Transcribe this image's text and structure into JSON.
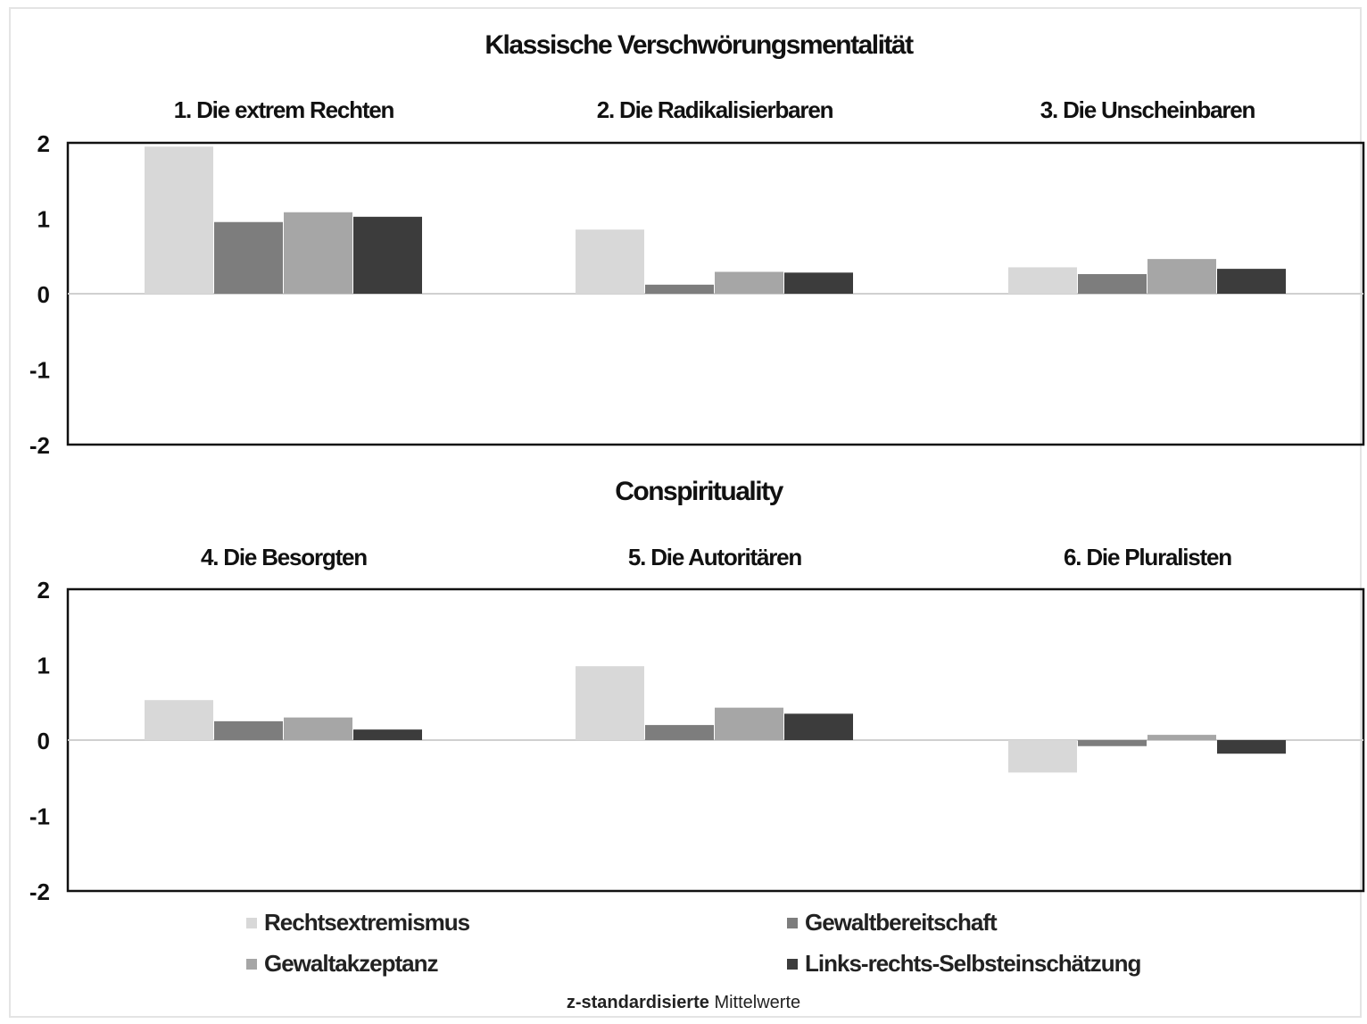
{
  "chart_data": {
    "type": "bar",
    "title": "",
    "caption_bold": "z-standardisierte",
    "caption_normal": "Mittelwerte",
    "ylim": [
      -2,
      2
    ],
    "yticks": [
      "2",
      "1",
      "0",
      "-1",
      "-2"
    ],
    "series_names": [
      "Rechtsextremismus",
      "Gewaltbereitschaft",
      "Gewaltakzeptanz",
      "Links-rechts-Selbsteinschätzung"
    ],
    "colors": [
      "#d8d8d8",
      "#7d7d7d",
      "#a6a6a6",
      "#3c3c3c"
    ],
    "panels": [
      {
        "title": "Klassische Verschwörungsmentalität",
        "groups": [
          {
            "label": "1. Die extrem Rechten",
            "values": [
              1.95,
              0.95,
              1.08,
              1.02
            ]
          },
          {
            "label": "2. Die Radikalisierbaren",
            "values": [
              0.85,
              0.12,
              0.29,
              0.28
            ]
          },
          {
            "label": "3. Die Unscheinbaren",
            "values": [
              0.35,
              0.26,
              0.46,
              0.33
            ]
          }
        ]
      },
      {
        "title": "Conspirituality",
        "groups": [
          {
            "label": "4. Die Besorgten",
            "values": [
              0.53,
              0.25,
              0.3,
              0.14
            ]
          },
          {
            "label": "5. Die Autoritären",
            "values": [
              0.98,
              0.2,
              0.43,
              0.35
            ]
          },
          {
            "label": "6. Die Pluralisten",
            "values": [
              -0.43,
              -0.08,
              0.07,
              -0.18
            ]
          }
        ]
      }
    ]
  }
}
